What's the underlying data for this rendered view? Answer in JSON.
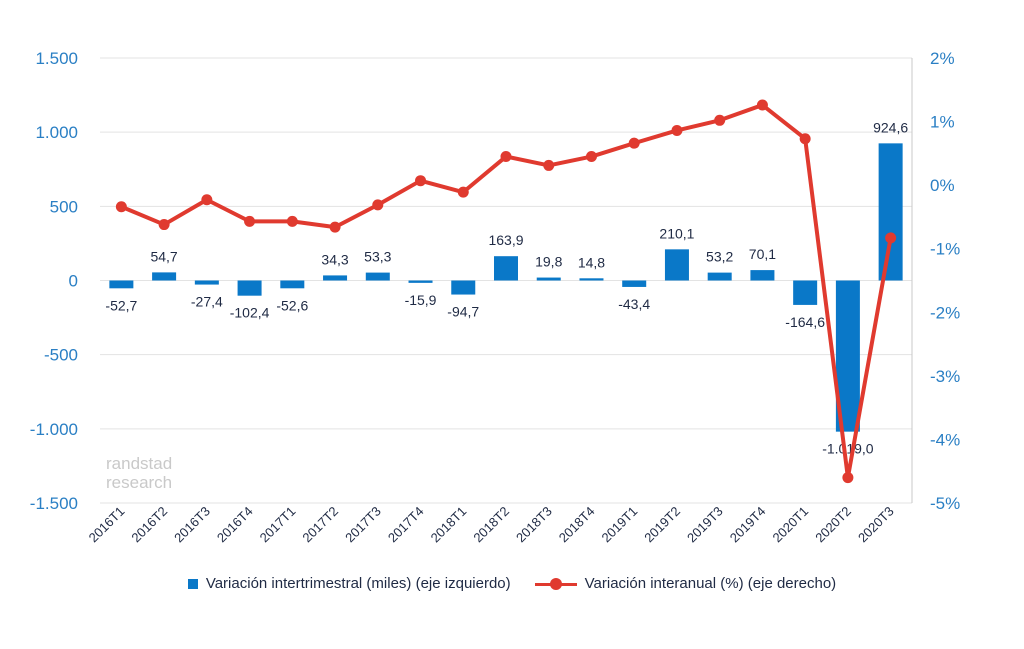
{
  "chart_data": {
    "type": "bar+line",
    "categories": [
      "2016T1",
      "2016T2",
      "2016T3",
      "2016T4",
      "2017T1",
      "2017T2",
      "2017T3",
      "2017T4",
      "2018T1",
      "2018T2",
      "2018T3",
      "2018T4",
      "2019T1",
      "2019T2",
      "2019T3",
      "2019T4",
      "2020T1",
      "2020T2",
      "2020T3"
    ],
    "series": [
      {
        "name": "Variación intertrimestral (miles) (eje izquierdo)",
        "type": "bar",
        "axis": "left",
        "color": "#0a78c8",
        "values": [
          -52.7,
          54.7,
          -27.4,
          -102.4,
          -52.6,
          34.3,
          53.3,
          -15.9,
          -94.7,
          163.9,
          19.8,
          14.8,
          -43.4,
          210.1,
          53.2,
          70.1,
          -164.6,
          -1019.0,
          924.6
        ],
        "labels": [
          "-52,7",
          "54,7",
          "-27,4",
          "-102,4",
          "-52,6",
          "34,3",
          "53,3",
          "-15,9",
          "-94,7",
          "163,9",
          "19,8",
          "14,8",
          "-43,4",
          "210,1",
          "53,2",
          "70,1",
          "-164,6",
          "-1.019,0",
          "924,6"
        ]
      },
      {
        "name": "Variación interanual (%) (eje derecho)",
        "type": "line",
        "axis": "right",
        "color": "#e03a2f",
        "values": [
          -0.34,
          -0.62,
          -0.23,
          -0.57,
          -0.57,
          -0.66,
          -0.31,
          0.07,
          -0.11,
          0.45,
          0.31,
          0.45,
          0.66,
          0.86,
          1.02,
          1.26,
          0.73,
          -4.6,
          -0.83
        ]
      }
    ],
    "yleft": {
      "lim": [
        -1500,
        1500
      ],
      "ticks": [
        1500,
        1000,
        500,
        0,
        -500,
        -1000,
        -1500
      ],
      "tick_labels": [
        "1.500",
        "1.000",
        "500",
        "0",
        "-500",
        "-1.000",
        "-1.500"
      ]
    },
    "yright": {
      "lim": [
        -5,
        2
      ],
      "ticks": [
        2,
        1,
        0,
        -1,
        -2,
        -3,
        -4,
        -5
      ],
      "tick_labels": [
        "2%",
        "1%",
        "0%",
        "-1%",
        "-2%",
        "-3%",
        "-4%",
        "-5%"
      ]
    },
    "grid": true,
    "legend_position": "bottom",
    "watermark": [
      "randstad",
      "research"
    ]
  },
  "colors": {
    "bar": "#0a78c8",
    "line": "#e03a2f",
    "axis_text": "#2a7fc4"
  }
}
